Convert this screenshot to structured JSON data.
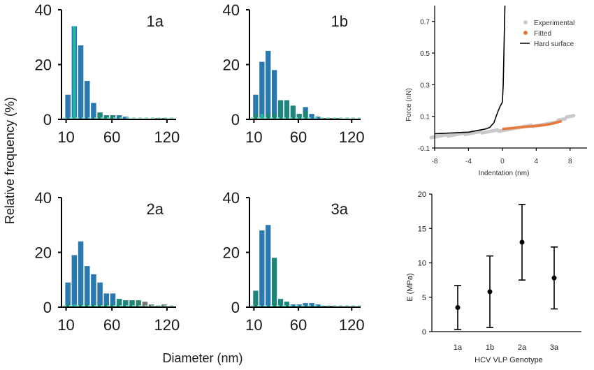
{
  "figure": {
    "shared_ylabel": "Relative frequency (%)",
    "shared_xlabel": "Diameter (nm)"
  },
  "chart_data": [
    {
      "id": "h1a",
      "type": "bar",
      "label": "1a",
      "x_ticks": [
        10,
        60,
        120
      ],
      "y_ticks": [
        0,
        20,
        40
      ],
      "ylim": [
        0,
        40
      ],
      "xlim": [
        5,
        130
      ],
      "bin_centers": [
        12,
        19,
        26,
        33,
        40,
        47,
        54,
        61,
        68,
        75,
        82,
        89,
        96,
        103,
        110,
        117
      ],
      "series": [
        {
          "values": [
            9,
            34,
            27,
            14,
            6,
            2.5,
            1.5,
            1.5,
            1.5,
            1,
            0,
            0,
            0,
            0,
            0.5,
            0.5
          ]
        },
        {
          "values": [
            0,
            34,
            0,
            0,
            0,
            2.5,
            1.5,
            1.5,
            0,
            0,
            0,
            0,
            0,
            0,
            0,
            0
          ]
        }
      ]
    },
    {
      "id": "h1b",
      "type": "bar",
      "label": "1b",
      "x_ticks": [
        10,
        60,
        120
      ],
      "y_ticks": [
        0,
        20,
        40
      ],
      "ylim": [
        0,
        40
      ],
      "xlim": [
        5,
        130
      ],
      "bin_centers": [
        12,
        19,
        26,
        33,
        40,
        47,
        54,
        61,
        68,
        75,
        82,
        89,
        96,
        103,
        110,
        117
      ],
      "series": [
        {
          "values": [
            9,
            21,
            25,
            18,
            7,
            7,
            5,
            2,
            4.5,
            2,
            1,
            0.5,
            0.5,
            0.5,
            0,
            0
          ]
        },
        {
          "values": [
            2,
            2,
            2,
            2,
            7,
            7,
            5,
            2,
            3,
            0,
            0,
            0,
            0,
            0,
            0,
            0
          ]
        }
      ]
    },
    {
      "id": "h2a",
      "type": "bar",
      "label": "2a",
      "x_ticks": [
        10,
        60,
        120
      ],
      "y_ticks": [
        0,
        20,
        40
      ],
      "ylim": [
        0,
        40
      ],
      "xlim": [
        5,
        130
      ],
      "bin_centers": [
        12,
        19,
        26,
        33,
        40,
        47,
        54,
        61,
        68,
        75,
        82,
        89,
        96,
        103,
        110,
        117
      ],
      "series": [
        {
          "values": [
            9,
            19,
            24,
            15,
            12,
            9,
            5,
            5,
            3,
            2.5,
            2.5,
            2.5,
            2,
            1,
            0.5,
            1
          ]
        },
        {
          "values": [
            1,
            1,
            1,
            1,
            1,
            1,
            1,
            1,
            3,
            2.5,
            2.5,
            2.5,
            0,
            0,
            0,
            0
          ]
        }
      ]
    },
    {
      "id": "h3a",
      "type": "bar",
      "label": "3a",
      "x_ticks": [
        10,
        60,
        120
      ],
      "y_ticks": [
        0,
        20,
        40
      ],
      "ylim": [
        0,
        40
      ],
      "xlim": [
        5,
        130
      ],
      "bin_centers": [
        12,
        19,
        26,
        33,
        40,
        47,
        54,
        61,
        68,
        75,
        82,
        89,
        96,
        103,
        110,
        117
      ],
      "series": [
        {
          "values": [
            6,
            28,
            30,
            18,
            3,
            2,
            1,
            1,
            1.5,
            1.5,
            1,
            0.5,
            0.5,
            0,
            0,
            0
          ]
        },
        {
          "values": [
            6,
            0,
            0,
            18,
            3,
            2,
            0,
            0,
            0,
            0,
            0,
            0,
            0,
            0,
            0,
            0
          ]
        }
      ]
    },
    {
      "id": "force",
      "type": "line",
      "xlabel": "Indentation (nm)",
      "ylabel": "Force (nN)",
      "x_ticks": [
        -8,
        -4,
        0,
        4,
        8
      ],
      "y_ticks": [
        -0.1,
        0.1,
        0.3,
        0.5,
        0.7
      ],
      "xlim": [
        -8,
        10
      ],
      "ylim": [
        -0.1,
        0.8
      ],
      "legend": [
        "Experimental",
        "Fitted",
        "Hard surface"
      ],
      "series": [
        {
          "name": "Experimental",
          "x": [
            -8,
            -7,
            -6,
            -5,
            -4,
            -3,
            -2,
            -1,
            0,
            1,
            2,
            3,
            4,
            5,
            6,
            7,
            8
          ],
          "y": [
            -0.03,
            -0.02,
            -0.02,
            -0.01,
            -0.01,
            0,
            0,
            0.01,
            0.01,
            0.02,
            0.03,
            0.04,
            0.04,
            0.05,
            0.06,
            0.08,
            0.1
          ]
        },
        {
          "name": "Fitted",
          "x": [
            0,
            1,
            2,
            3,
            4,
            5,
            6,
            7
          ],
          "y": [
            0.02,
            0.025,
            0.03,
            0.035,
            0.04,
            0.045,
            0.055,
            0.07
          ]
        },
        {
          "name": "Hard surface",
          "x": [
            -8,
            -6,
            -4,
            -3,
            -2,
            -1.5,
            -1,
            -0.6,
            -0.3,
            0,
            0.1,
            0.2,
            0.3
          ],
          "y": [
            -0.01,
            -0.005,
            0,
            0.01,
            0.02,
            0.03,
            0.06,
            0.12,
            0.16,
            0.19,
            0.3,
            0.55,
            0.8
          ]
        }
      ]
    },
    {
      "id": "modulus",
      "type": "scatter",
      "xlabel": "HCV VLP Genotype",
      "ylabel": "E (MPa)",
      "categories": [
        "1a",
        "1b",
        "2a",
        "3a"
      ],
      "y_ticks": [
        0,
        5,
        10,
        15,
        20
      ],
      "ylim": [
        0,
        20
      ],
      "values": [
        3.5,
        5.8,
        13.0,
        7.8
      ],
      "errors": [
        3.2,
        5.2,
        5.5,
        4.5
      ]
    }
  ]
}
